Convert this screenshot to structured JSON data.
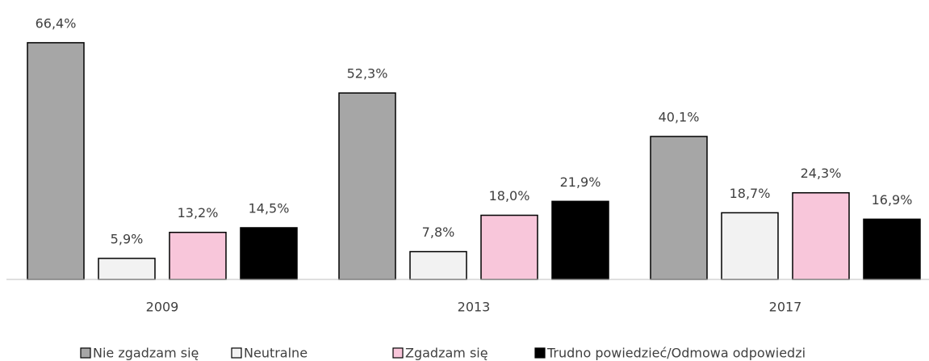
{
  "chart_data": {
    "type": "bar",
    "categories": [
      "2009",
      "2013",
      "2017"
    ],
    "series": [
      {
        "name": "Nie zgadzam się",
        "color": "#a6a6a6",
        "values": [
          66.4,
          52.3,
          40.1
        ],
        "value_labels": [
          "66,4%",
          "52,3%",
          "40,1%"
        ]
      },
      {
        "name": "Neutralne",
        "color": "#f2f2f2",
        "values": [
          5.9,
          7.8,
          18.7
        ],
        "value_labels": [
          "5,9%",
          "7,8%",
          "18,7%"
        ]
      },
      {
        "name": "Zgadzam się",
        "color": "#f8c6da",
        "values": [
          13.2,
          18.0,
          24.3
        ],
        "value_labels": [
          "13,2%",
          "18,0%",
          "24,3%"
        ]
      },
      {
        "name": "Trudno powiedzieć/Odmowa odpowiedzi",
        "color": "#000000",
        "values": [
          14.5,
          21.9,
          16.9
        ],
        "value_labels": [
          "14,5%",
          "21,9%",
          "16,9%"
        ]
      }
    ],
    "ylim": [
      0,
      70
    ],
    "legend": "bottom"
  }
}
